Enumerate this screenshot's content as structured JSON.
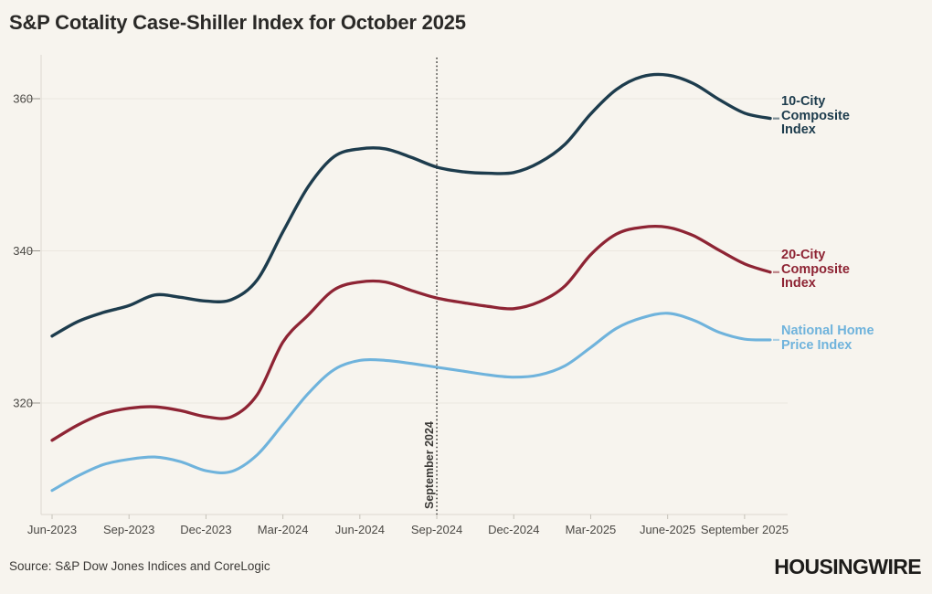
{
  "page": {
    "title": "S&P Cotality Case-Shiller Index for October 2025",
    "source": "Source: S&P Dow Jones Indices and CoreLogic",
    "brand": "HOUSINGWIRE",
    "background_color": "#f7f4ee"
  },
  "chart_data": {
    "type": "line",
    "title": "S&P Cotality Case-Shiller Index for October 2025",
    "x": [
      "Jun-2023",
      "Jul-2023",
      "Aug-2023",
      "Sep-2023",
      "Oct-2023",
      "Nov-2023",
      "Dec-2023",
      "Jan-2024",
      "Feb-2024",
      "Mar-2024",
      "Apr-2024",
      "May-2024",
      "Jun-2024",
      "Jul-2024",
      "Aug-2024",
      "Sep-2024",
      "Oct-2024",
      "Nov-2024",
      "Dec-2024",
      "Jan-2025",
      "Feb-2025",
      "Mar-2025",
      "Apr-2025",
      "May-2025",
      "Jun-2025",
      "Jul-2025",
      "Aug-2025",
      "Sep-2025",
      "Oct-2025"
    ],
    "x_tick_labels": [
      "Jun-2023",
      "Sep-2023",
      "Dec-2023",
      "Mar-2024",
      "Jun-2024",
      "Sep-2024",
      "Dec-2024",
      "Mar-2025",
      "June-2025",
      "September 2025"
    ],
    "x_tick_month_indices": [
      0,
      3,
      6,
      9,
      12,
      15,
      18,
      21,
      24,
      27
    ],
    "y_ticks": [
      320,
      340,
      360
    ],
    "ylim": [
      305,
      366
    ],
    "grid": "horizontal",
    "legend_position": "right-of-line-ends",
    "annotation": {
      "label": "September 2024",
      "month_index": 15
    },
    "series": [
      {
        "name": "10-City Composite Index",
        "label_lines": [
          "10-City",
          "Composite",
          "Index"
        ],
        "color": "#1d3c4d",
        "values": [
          328.8,
          330.7,
          331.9,
          332.8,
          334.2,
          333.9,
          333.4,
          333.6,
          336.2,
          342.5,
          348.5,
          352.4,
          353.4,
          353.4,
          352.3,
          351.0,
          350.4,
          350.2,
          350.3,
          351.6,
          354.0,
          358.0,
          361.2,
          362.9,
          363.1,
          362.0,
          359.9,
          358.1,
          357.4
        ]
      },
      {
        "name": "20-City Composite Index",
        "label_lines": [
          "20-City",
          "Composite",
          "Index"
        ],
        "color": "#8e2434",
        "values": [
          315.1,
          317.1,
          318.6,
          319.3,
          319.5,
          319.0,
          318.2,
          318.2,
          321.1,
          328.0,
          331.6,
          334.9,
          335.9,
          335.9,
          334.8,
          333.8,
          333.2,
          332.7,
          332.4,
          333.3,
          335.4,
          339.5,
          342.2,
          343.1,
          343.1,
          342.0,
          340.1,
          338.3,
          337.2
        ]
      },
      {
        "name": "National Home Price Index",
        "label_lines": [
          "National Home",
          "Price Index"
        ],
        "color": "#6fb3dc",
        "values": [
          308.5,
          310.4,
          311.9,
          312.6,
          312.9,
          312.3,
          311.1,
          311.0,
          313.2,
          317.2,
          321.3,
          324.4,
          325.6,
          325.6,
          325.2,
          324.7,
          324.2,
          323.7,
          323.4,
          323.7,
          324.9,
          327.3,
          329.8,
          331.2,
          331.8,
          330.9,
          329.3,
          328.4,
          328.3
        ]
      }
    ]
  }
}
